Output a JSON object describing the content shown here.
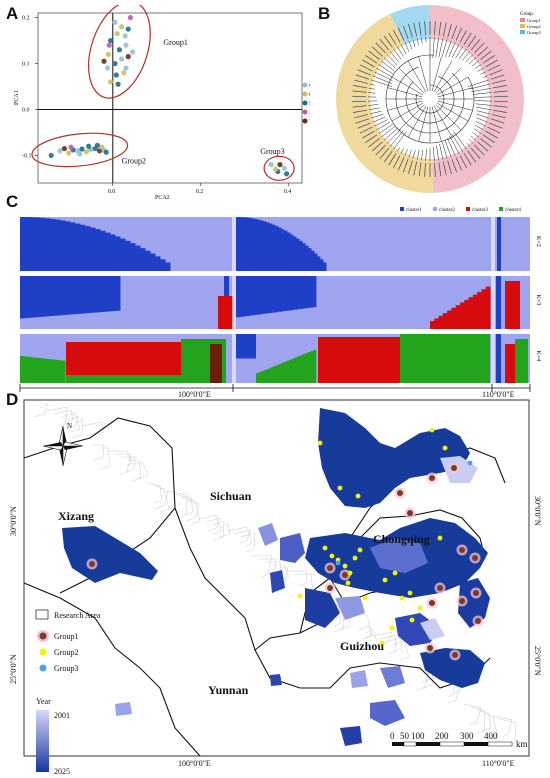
{
  "panels": {
    "A": "A",
    "B": "B",
    "C": "C",
    "D": "D"
  },
  "colors": {
    "cluster1": "#1f3fc7",
    "cluster2": "#9fa6ef",
    "cluster3": "#d60c0c",
    "cluster4": "#22a51d",
    "brown": "#6a1e0a",
    "pink": "#ff7fbf",
    "group1": "#e58a9c",
    "group2": "#e3b94a",
    "group3": "#5ab9e8",
    "mapDark": "#173b9a",
    "mapLight": "#c9cdf2",
    "point1": "#7a3b1e",
    "point2": "#f2f20a",
    "point3": "#4aa3e8",
    "ellipse": "#b0302a"
  },
  "chart_data": [
    {
      "type": "scatter",
      "xlabel": "PCA2",
      "ylabel": "PCA1",
      "xlim": [
        -0.17,
        0.43
      ],
      "ylim": [
        -0.16,
        0.21
      ],
      "xticks": [
        "0.0",
        "0.2",
        "0.4"
      ],
      "xtick_vals": [
        0,
        0.2,
        0.4
      ],
      "yticks": [
        "-0.1",
        "0.0",
        "0.1",
        "0.2"
      ],
      "ytick_vals": [
        -0.1,
        0,
        0.1,
        0.2
      ],
      "legend": [
        "CQ",
        "GZ",
        "SC",
        "XZ",
        "YN"
      ],
      "legend_colors": [
        "#8fc1d8",
        "#c8c060",
        "#1e6f85",
        "#b65fa3",
        "#6b2a1a"
      ],
      "groups": [
        "Group1",
        "Group2",
        "Group3"
      ],
      "points": [
        [
          0.005,
          0.19,
          0
        ],
        [
          0.02,
          0.18,
          1
        ],
        [
          0.035,
          0.175,
          2
        ],
        [
          0.04,
          0.2,
          3
        ],
        [
          0.01,
          0.165,
          1
        ],
        [
          0.028,
          0.16,
          0
        ],
        [
          -0.005,
          0.15,
          2
        ],
        [
          0.03,
          0.14,
          0
        ],
        [
          0.015,
          0.13,
          2
        ],
        [
          -0.01,
          0.12,
          1
        ],
        [
          0.02,
          0.11,
          0
        ],
        [
          0.035,
          0.115,
          4
        ],
        [
          0.005,
          0.1,
          2
        ],
        [
          -0.012,
          0.09,
          0
        ],
        [
          0.025,
          0.08,
          1
        ],
        [
          0.008,
          0.075,
          2
        ],
        [
          -0.02,
          0.105,
          4
        ],
        [
          0.045,
          0.125,
          0
        ],
        [
          -0.005,
          0.06,
          1
        ],
        [
          0.012,
          0.055,
          2
        ],
        [
          0.03,
          0.09,
          0
        ],
        [
          -0.008,
          0.14,
          3
        ],
        [
          -0.14,
          -0.1,
          2
        ],
        [
          -0.12,
          -0.09,
          0
        ],
        [
          -0.11,
          -0.085,
          4
        ],
        [
          -0.1,
          -0.095,
          1
        ],
        [
          -0.09,
          -0.088,
          2
        ],
        [
          -0.08,
          -0.09,
          0
        ],
        [
          -0.07,
          -0.086,
          2
        ],
        [
          -0.06,
          -0.092,
          1
        ],
        [
          -0.05,
          -0.087,
          0
        ],
        [
          -0.04,
          -0.085,
          2
        ],
        [
          -0.03,
          -0.09,
          4
        ],
        [
          -0.02,
          -0.088,
          0
        ],
        [
          -0.015,
          -0.093,
          2
        ],
        [
          -0.025,
          -0.082,
          1
        ],
        [
          -0.055,
          -0.08,
          2
        ],
        [
          -0.075,
          -0.097,
          0
        ],
        [
          -0.095,
          -0.082,
          3
        ],
        [
          -0.035,
          -0.078,
          2
        ],
        [
          0.36,
          -0.12,
          0
        ],
        [
          0.375,
          -0.135,
          2
        ],
        [
          0.39,
          -0.128,
          0
        ],
        [
          0.38,
          -0.12,
          4
        ],
        [
          0.37,
          -0.13,
          1
        ],
        [
          0.395,
          -0.14,
          2
        ]
      ]
    },
    {
      "type": "dendrogram",
      "legend_title": "Group",
      "legend": [
        "Group1",
        "Group2",
        "Group3"
      ],
      "legend_colors": [
        "#e58a9c",
        "#e3b94a",
        "#5ab9e8"
      ]
    },
    {
      "type": "bar",
      "subtype": "structure",
      "legend": [
        "cluster1",
        "cluster2",
        "cluster3",
        "cluster4"
      ],
      "rows": [
        "K=2",
        "K=3",
        "K=4"
      ],
      "groups": [
        "Group1",
        "Group2",
        "Group3"
      ]
    }
  ],
  "map": {
    "lon_labels": [
      "100°0'0\"E",
      "110°0'0\"E"
    ],
    "lat_labels": [
      "30°0'0\"N",
      "25°0'0\"N"
    ],
    "regions": [
      "Xizang",
      "Sichuan",
      "Chongqing",
      "Guizhou",
      "Yunnan"
    ],
    "north": "N",
    "legend": {
      "area": "Research Area",
      "g1": "Group1",
      "g2": "Group2",
      "g3": "Group3",
      "year": "Year",
      "y_start": "2001",
      "y_end": "2025"
    },
    "scale": {
      "labels": [
        "0",
        "50",
        "100",
        "200",
        "300",
        "400"
      ],
      "unit": "km"
    }
  }
}
